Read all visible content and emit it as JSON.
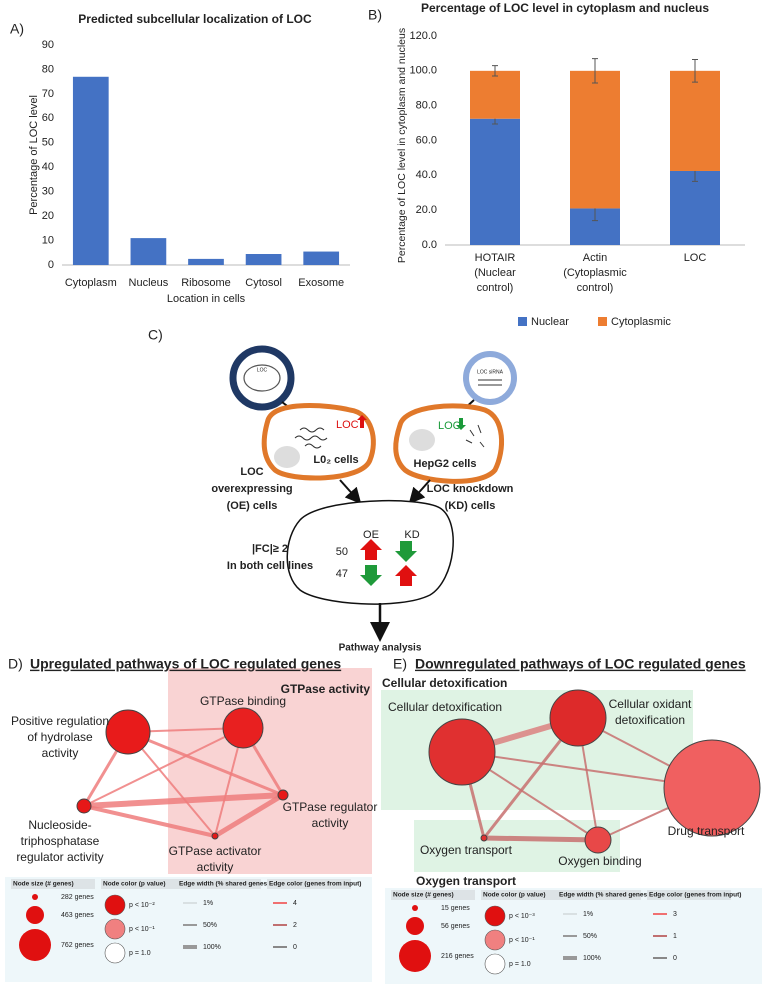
{
  "chart_data": [
    {
      "type": "bar",
      "panel": "A)",
      "title": "Predicted subcellular localization of LOC",
      "categories": [
        "Cytoplasm",
        "Nucleus",
        "Ribosome",
        "Cytosol",
        "Exosome"
      ],
      "values": [
        77,
        11,
        2.5,
        4.5,
        5.5
      ],
      "color": "#4472c4",
      "ylim": [
        0,
        90
      ],
      "yticks": [
        0,
        10,
        20,
        30,
        40,
        50,
        60,
        70,
        80,
        90
      ],
      "x_label": "Location in cells",
      "y_label": "Percentage of LOC level",
      "grid": false
    },
    {
      "type": "stacked_bar",
      "panel": "B)",
      "title": "Percentage of LOC level in cytoplasm and nucleus",
      "categories": [
        "HOTAIR (Nuclear control)",
        "Actin (Cytoplasmic control)",
        "LOC"
      ],
      "series": [
        {
          "name": "Nuclear",
          "color": "#4472c4",
          "values": [
            72.5,
            21,
            42.5
          ],
          "errors": [
            3,
            7,
            6
          ]
        },
        {
          "name": "Cytoplasmic",
          "color": "#ed7d31",
          "values": [
            27.5,
            79,
            57.5
          ],
          "errors": [
            3,
            7,
            6.5
          ]
        }
      ],
      "ylim": [
        0,
        120
      ],
      "yticks": [
        {
          "value": 0,
          "label": "0.0"
        },
        {
          "value": 20,
          "label": "20.0"
        },
        {
          "value": 40,
          "label": "40.0"
        },
        {
          "value": 60,
          "label": "60.0"
        },
        {
          "value": 80,
          "label": "80.0"
        },
        {
          "value": 100,
          "label": "100.0"
        },
        {
          "value": 120,
          "label": "120.0"
        }
      ],
      "y_label": "Percentage of LOC level in cytoplasm and nucleus",
      "legend": "bottom",
      "grid": false
    }
  ],
  "panel_c": {
    "label": "C)",
    "plasmid_left": "LOC",
    "plasmid_right": "LOC siRNA",
    "oe_marker": "LOC",
    "oe_cell": "L0₂ cells",
    "kd_marker": "LOC",
    "kd_cell": "HepG2 cells",
    "oe_caption": [
      "LOC",
      "overexpressing",
      "(OE) cells"
    ],
    "kd_caption": [
      "LOC knockdown",
      "(KD) cells"
    ],
    "criteria": [
      "|FC|≥ 2",
      "In both cell lines"
    ],
    "col_oe": "OE",
    "col_kd": "KD",
    "count_up": 50,
    "count_down": 47,
    "footer": "Pathway analysis"
  },
  "panel_d": {
    "label": "D)",
    "title": "Upregulated pathways of LOC regulated genes",
    "cluster": "GTPase activity",
    "nodes": [
      {
        "label": [
          "Positive regulation",
          "of hydrolase",
          "activity"
        ]
      },
      {
        "label": [
          "GTPase binding"
        ]
      },
      {
        "label": [
          "Nucleoside-",
          "triphosphatase",
          "regulator activity"
        ]
      },
      {
        "label": [
          "GTPase regulator",
          "activity"
        ]
      },
      {
        "label": [
          "GTPase activator",
          "activity"
        ]
      }
    ],
    "legend": {
      "size_title": "Node size (# genes)",
      "sizes": [
        "282 genes",
        "463 genes",
        "762 genes"
      ],
      "color_title": "Node color (p value)",
      "colors": [
        "p < 10⁻²",
        "p < 10⁻¹",
        "p = 1.0"
      ],
      "width_title": "Edge width (% shared genes)",
      "widths": [
        "1%",
        "50%",
        "100%"
      ],
      "edge_color_title": "Edge color (genes from input)",
      "edge_colors": [
        "4",
        "2",
        "0"
      ]
    }
  },
  "panel_e": {
    "label": "E)",
    "title": "Downregulated pathways of LOC regulated genes",
    "clusters": [
      "Cellular detoxification",
      "Oxygen transport"
    ],
    "nodes": [
      {
        "label": [
          "Cellular detoxification"
        ]
      },
      {
        "label": [
          "Cellular oxidant",
          "detoxification"
        ]
      },
      {
        "label": [
          "Drug transport"
        ]
      },
      {
        "label": [
          "Oxygen binding"
        ]
      },
      {
        "label": [
          "Oxygen transport"
        ]
      }
    ],
    "legend": {
      "size_title": "Node size (# genes)",
      "sizes": [
        "15 genes",
        "56 genes",
        "216 genes"
      ],
      "color_title": "Node color (p value)",
      "colors": [
        "p < 10⁻³",
        "p < 10⁻¹",
        "p = 1.0"
      ],
      "width_title": "Edge width (% shared genes)",
      "widths": [
        "1%",
        "50%",
        "100%"
      ],
      "edge_color_title": "Edge color (genes from input)",
      "edge_colors": [
        "3",
        "1",
        "0"
      ]
    }
  }
}
